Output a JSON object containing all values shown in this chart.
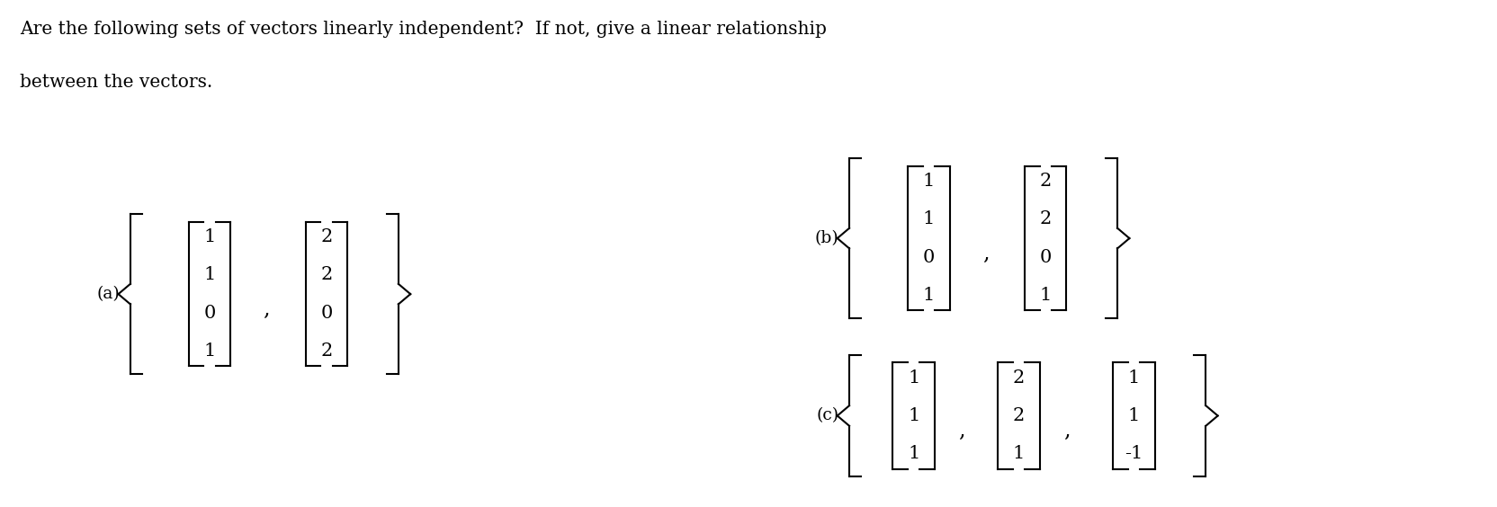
{
  "title_line1": "Are the following sets of vectors linearly independent?  If not, give a linear relationship",
  "title_line2": "between the vectors.",
  "background_color": "#ffffff",
  "text_color": "#000000",
  "fig_width": 16.65,
  "fig_height": 5.64,
  "font_family": "DejaVu Serif",
  "part_a": {
    "label": "(a)",
    "vec1": [
      "1",
      "1",
      "0",
      "1"
    ],
    "vec2": [
      "2",
      "2",
      "0",
      "2"
    ]
  },
  "part_b": {
    "label": "(b)",
    "vec1": [
      "1",
      "1",
      "0",
      "1"
    ],
    "vec2": [
      "2",
      "2",
      "0",
      "1"
    ]
  },
  "part_c": {
    "label": "(c)",
    "vec1": [
      "1",
      "1",
      "1"
    ],
    "vec2": [
      "2",
      "2",
      "1"
    ],
    "vec3": [
      "1",
      "1",
      "-1"
    ]
  }
}
